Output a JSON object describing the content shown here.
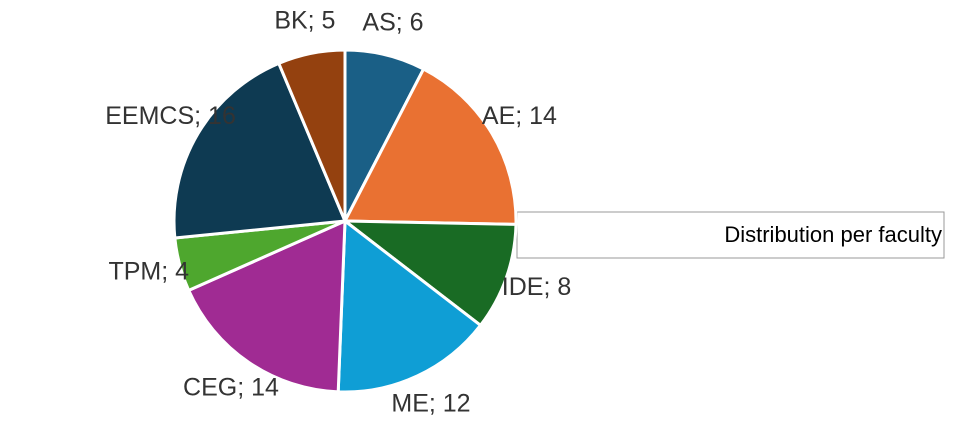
{
  "chart_data": {
    "type": "pie",
    "title": "Distribution per faculty",
    "values": [
      6,
      14,
      8,
      12,
      14,
      4,
      16,
      5
    ],
    "value_labels": [
      "AS; 6",
      "AE; 14",
      "IDE; 8",
      "ME; 12",
      "CEG; 14",
      "TPM; 4",
      "EEMCS; 16",
      "BK; 5"
    ],
    "colors": [
      "#1a5f86",
      "#e97132",
      "#196b24",
      "#0f9ed5",
      "#a02b93",
      "#4ea72e",
      "#0e3a52",
      "#94410f"
    ]
  }
}
